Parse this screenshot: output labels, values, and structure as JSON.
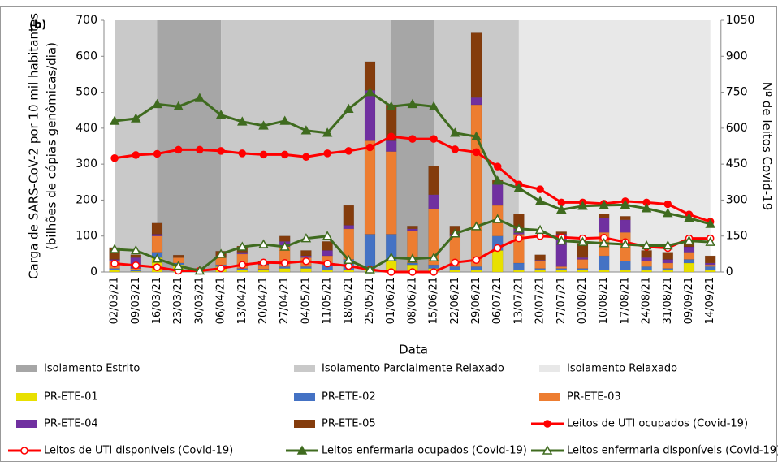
{
  "chart_data": {
    "type": "bar",
    "panel_label": "(b)",
    "x_label": "Data",
    "y_label": [
      "Carga de SARS-CoV-2 por 10 mil habitantes",
      "(bilhões de cópias genômicas/dia)"
    ],
    "y2_label": "Nº de leitos Covid-19",
    "categories": [
      "02/03/21",
      "09/03/21",
      "16/03/21",
      "23/03/21",
      "30/03/21",
      "06/04/21",
      "13/04/21",
      "20/04/21",
      "27/04/21",
      "04/05/21",
      "11/05/21",
      "18/05/21",
      "25/05/21",
      "01/06/21",
      "08/06/21",
      "15/06/21",
      "22/06/21",
      "29/06/21",
      "06/07/21",
      "13/07/21",
      "20/07/21",
      "27/07/21",
      "03/08/21",
      "10/08/21",
      "17/08/21",
      "24/08/21",
      "31/08/21",
      "09/09/21",
      "14/09/21"
    ],
    "ylim": [
      0,
      700
    ],
    "yticks": [
      0,
      100,
      200,
      300,
      400,
      500,
      600,
      700
    ],
    "y2lim": [
      0,
      1050
    ],
    "y2ticks": [
      0,
      150,
      300,
      450,
      600,
      750,
      900,
      1050
    ],
    "phases": [
      {
        "name": "Isolamento Estrito",
        "color": "#a6a6a6",
        "periods": [
          [
            "16/03/21",
            "06/04/21"
          ],
          [
            "01/06/21",
            "15/06/21"
          ]
        ]
      },
      {
        "name": "Isolamento Parcialmente Relaxado",
        "color": "#c9c9c9",
        "periods": [
          [
            "02/03/21",
            "16/03/21"
          ],
          [
            "06/04/21",
            "01/06/21"
          ],
          [
            "15/06/21",
            "13/07/21"
          ]
        ]
      },
      {
        "name": "Isolamento Relaxado",
        "color": "#e8e8e8",
        "periods": [
          [
            "13/07/21",
            "14/09/21"
          ]
        ]
      }
    ],
    "series": [
      {
        "name": "PR-ETE-01",
        "type": "bar",
        "color": "#e8e000",
        "values": [
          5,
          2,
          40,
          20,
          2,
          15,
          5,
          5,
          10,
          10,
          5,
          5,
          5,
          30,
          20,
          10,
          5,
          5,
          60,
          5,
          5,
          5,
          5,
          5,
          5,
          5,
          5,
          25,
          5
        ]
      },
      {
        "name": "PR-ETE-02",
        "type": "bar",
        "color": "#4472c4",
        "values": [
          5,
          3,
          15,
          5,
          2,
          5,
          5,
          3,
          5,
          5,
          15,
          30,
          100,
          75,
          5,
          10,
          10,
          10,
          40,
          20,
          5,
          5,
          5,
          40,
          25,
          10,
          5,
          10,
          10
        ]
      },
      {
        "name": "PR-ETE-03",
        "type": "bar",
        "color": "#ed7d31",
        "values": [
          20,
          5,
          45,
          15,
          3,
          20,
          40,
          12,
          55,
          25,
          25,
          85,
          260,
          230,
          90,
          155,
          85,
          450,
          85,
          80,
          20,
          5,
          25,
          65,
          80,
          15,
          15,
          20,
          5
        ]
      },
      {
        "name": "PR-ETE-04",
        "type": "bar",
        "color": "#7030a0",
        "values": [
          5,
          30,
          5,
          0,
          1,
          3,
          5,
          2,
          15,
          5,
          15,
          10,
          140,
          30,
          5,
          40,
          5,
          20,
          60,
          15,
          3,
          90,
          5,
          40,
          35,
          10,
          10,
          15,
          5
        ]
      },
      {
        "name": "PR-ETE-05",
        "type": "bar",
        "color": "#843c0c",
        "values": [
          33,
          8,
          31,
          7,
          2,
          15,
          17,
          8,
          15,
          15,
          25,
          55,
          80,
          100,
          8,
          80,
          23,
          180,
          10,
          42,
          15,
          7,
          40,
          12,
          10,
          20,
          20,
          20,
          20
        ]
      },
      {
        "name": "Leitos de UTI ocupados (Covid-19)",
        "type": "line",
        "axis": "y2",
        "marker": "circle",
        "marker_fill": "filled",
        "color": "#ff0000",
        "values": [
          475,
          488,
          493,
          510,
          510,
          505,
          495,
          490,
          490,
          480,
          495,
          505,
          520,
          565,
          555,
          555,
          512,
          500,
          440,
          365,
          345,
          290,
          290,
          285,
          295,
          290,
          283,
          240,
          210
        ]
      },
      {
        "name": "Leitos de UTI disponíveis (Covid-19)",
        "type": "line",
        "axis": "y2",
        "marker": "circle",
        "marker_fill": "open",
        "color": "#ff0000",
        "values": [
          35,
          28,
          20,
          5,
          5,
          15,
          30,
          40,
          38,
          45,
          35,
          25,
          10,
          0,
          0,
          0,
          40,
          50,
          100,
          140,
          150,
          145,
          140,
          143,
          125,
          105,
          100,
          140,
          140
        ]
      },
      {
        "name": "Leitos enfermaria ocupados (Covid-19)",
        "type": "line",
        "axis": "y2",
        "marker": "triangle",
        "marker_fill": "filled",
        "color": "#3f6b1f",
        "values": [
          630,
          640,
          700,
          690,
          725,
          655,
          627,
          610,
          630,
          590,
          580,
          680,
          750,
          690,
          700,
          690,
          580,
          565,
          380,
          350,
          295,
          260,
          275,
          278,
          280,
          265,
          245,
          225,
          200
        ]
      },
      {
        "name": "Leitos enfermaria disponíveis (Covid-19)",
        "type": "line",
        "axis": "y2",
        "marker": "triangle",
        "marker_fill": "open",
        "color": "#3f6b1f",
        "values": [
          95,
          90,
          55,
          25,
          5,
          75,
          105,
          115,
          105,
          140,
          150,
          50,
          10,
          60,
          55,
          60,
          160,
          190,
          220,
          180,
          175,
          130,
          125,
          120,
          115,
          110,
          110,
          130,
          125
        ]
      }
    ]
  }
}
